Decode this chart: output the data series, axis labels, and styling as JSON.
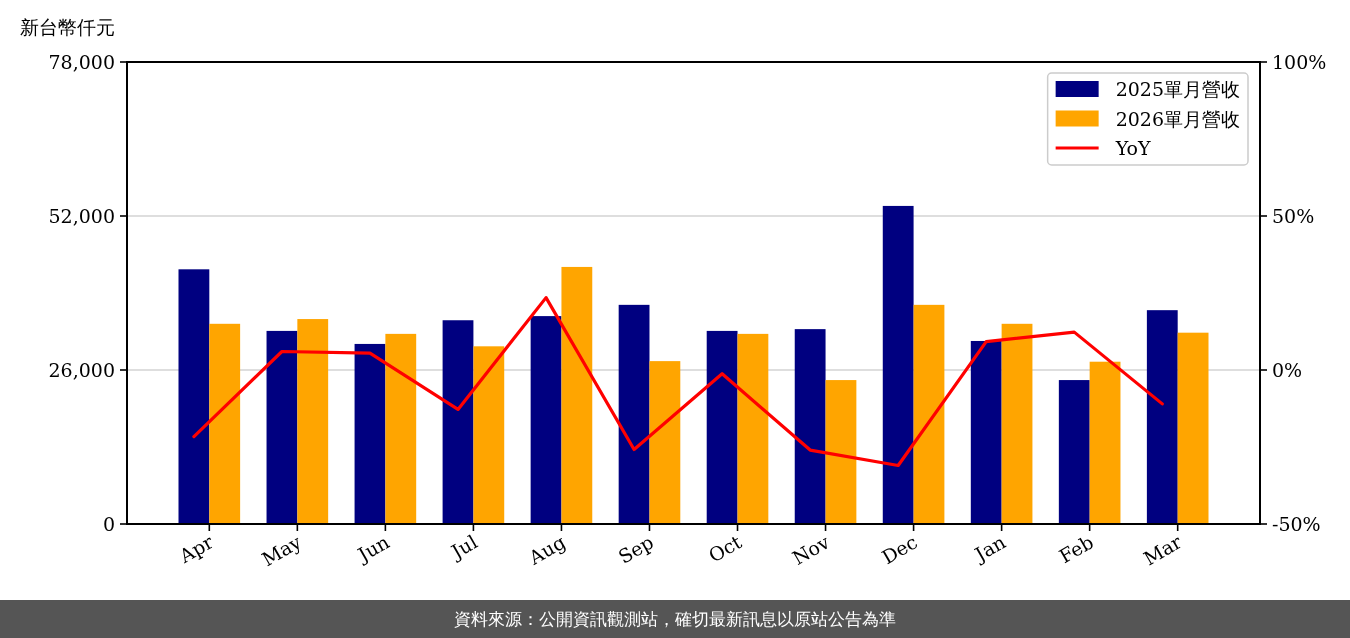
{
  "chart_data": {
    "type": "bar",
    "ylabel": "新台幣仟元",
    "categories": [
      "Apr",
      "May",
      "Jun",
      "Jul",
      "Aug",
      "Sep",
      "Oct",
      "Nov",
      "Dec",
      "Jan",
      "Feb",
      "Mar"
    ],
    "series": [
      {
        "name": "2025單月營收",
        "color": "#000080",
        "values": [
          43000,
          32600,
          30400,
          34400,
          35100,
          37000,
          32600,
          32900,
          53700,
          30900,
          24300,
          36100
        ]
      },
      {
        "name": "2026單月營收",
        "color": "#ffa500",
        "values": [
          33800,
          34600,
          32100,
          30000,
          43400,
          27500,
          32100,
          24300,
          37000,
          33800,
          27400,
          32300
        ]
      },
      {
        "name": "YoY",
        "type": "line",
        "axis": "y2",
        "color": "#ff0000",
        "values": [
          -21.6,
          6,
          5.5,
          -12.8,
          23.5,
          -25.8,
          -1.2,
          -26,
          -31,
          9.2,
          12.3,
          -11
        ]
      }
    ],
    "ylim": [
      0,
      78000
    ],
    "yticks": [
      0,
      {
        "value": 26000,
        "label": "26,000"
      },
      {
        "value": 52000,
        "label": "52,000"
      },
      {
        "value": 78000,
        "label": "78,000"
      }
    ],
    "y2lim": [
      -50,
      100
    ],
    "y2ticks": [
      {
        "value": -50,
        "label": "-50%"
      },
      {
        "value": 0,
        "label": "0%"
      },
      {
        "value": 50,
        "label": "50%"
      },
      {
        "value": 100,
        "label": "100%"
      }
    ],
    "grid": "y",
    "legend": "top right",
    "annotations": [
      "資料來源：公開資訊觀測站，確切最新訊息以原站公告為準"
    ]
  }
}
